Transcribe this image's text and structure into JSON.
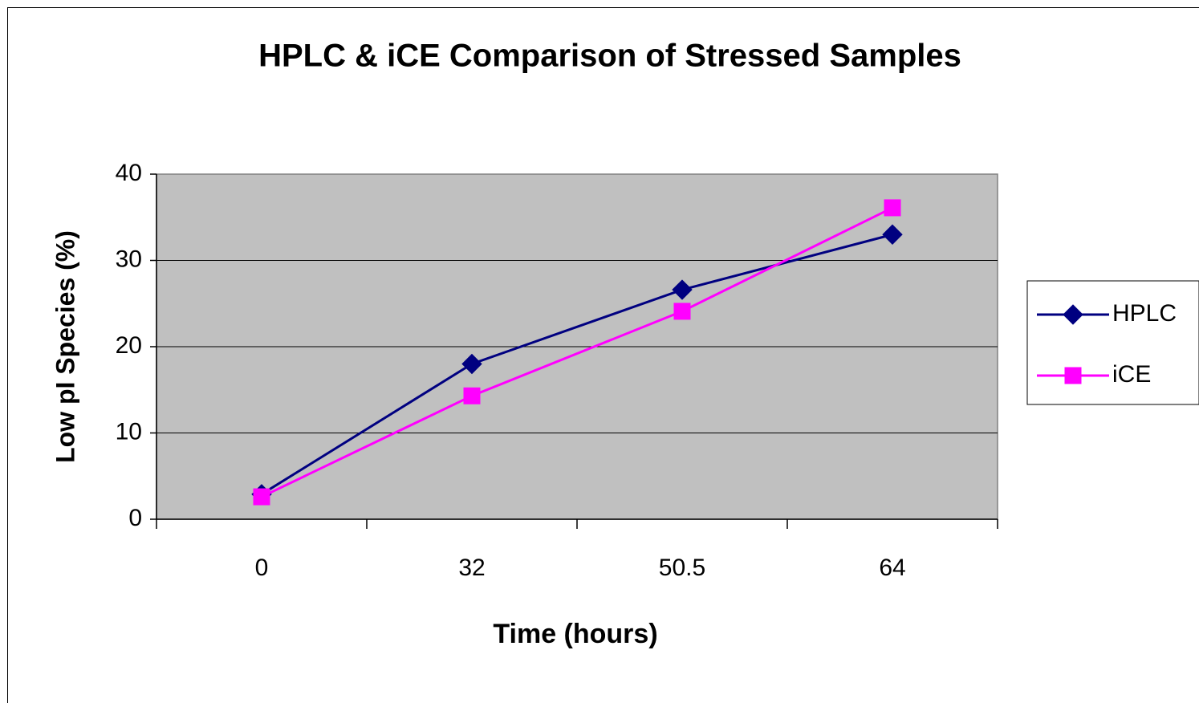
{
  "chart_data": {
    "type": "line",
    "title": "HPLC & iCE Comparison of Stressed Samples",
    "x_label": "Time (hours)",
    "y_label": "Low pI Species (%)",
    "categories": [
      "0",
      "32",
      "50.5",
      "64"
    ],
    "series": [
      {
        "name": "HPLC",
        "color": "#000080",
        "marker": "diamond",
        "values": [
          2.9,
          18,
          26.6,
          33
        ]
      },
      {
        "name": "iCE",
        "color": "#ff00ff",
        "marker": "square",
        "values": [
          2.6,
          14.3,
          24.1,
          36.1
        ]
      }
    ],
    "ylim": [
      0,
      40
    ],
    "yticks": [
      0,
      10,
      20,
      30,
      40
    ],
    "grid": true,
    "legend": "right"
  }
}
